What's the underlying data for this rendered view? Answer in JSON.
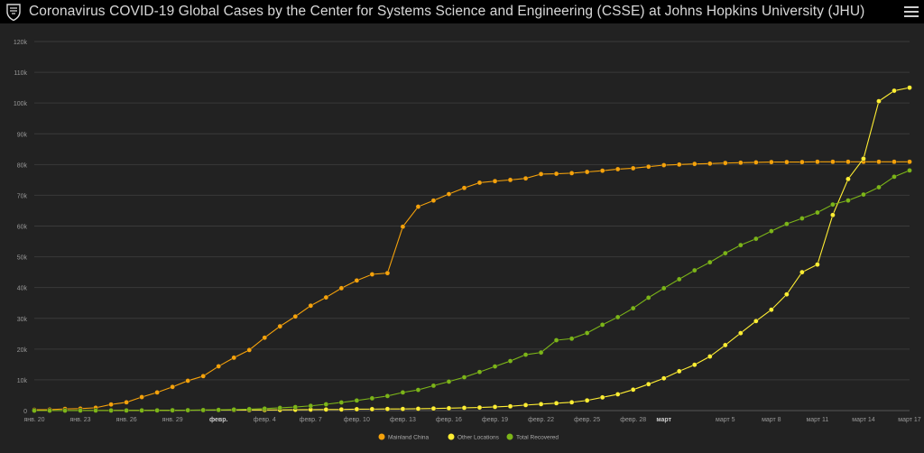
{
  "header": {
    "title": "Coronavirus COVID-19 Global Cases by the Center for Systems Science and Engineering (CSSE) at Johns Hopkins University (JHU)"
  },
  "colors": {
    "background": "#222222",
    "header_bg": "#000000",
    "mainland": "#f5a20b",
    "other": "#ffee33",
    "recovered": "#7cb518",
    "grid": "#3a3a3a",
    "tick_text": "#999999"
  },
  "chart_data": {
    "type": "line",
    "title": "",
    "xlabel": "",
    "ylabel": "",
    "ylim": [
      0,
      120000
    ],
    "yticks": [
      0,
      10000,
      20000,
      30000,
      40000,
      50000,
      60000,
      70000,
      80000,
      90000,
      100000,
      110000,
      120000
    ],
    "ytick_labels": [
      "0",
      "10k",
      "20k",
      "30k",
      "40k",
      "50k",
      "60k",
      "70k",
      "80k",
      "90k",
      "100k",
      "110k",
      "120k"
    ],
    "grid": "horizontal",
    "legend_position": "bottom",
    "x_ticks": [
      {
        "day": 0,
        "label": "янв. 20",
        "bold": false
      },
      {
        "day": 3,
        "label": "янв. 23",
        "bold": false
      },
      {
        "day": 6,
        "label": "янв. 26",
        "bold": false
      },
      {
        "day": 9,
        "label": "янв. 29",
        "bold": false
      },
      {
        "day": 12,
        "label": "февр.",
        "bold": true
      },
      {
        "day": 15,
        "label": "февр. 4",
        "bold": false
      },
      {
        "day": 18,
        "label": "февр. 7",
        "bold": false
      },
      {
        "day": 21,
        "label": "февр. 10",
        "bold": false
      },
      {
        "day": 24,
        "label": "февр. 13",
        "bold": false
      },
      {
        "day": 27,
        "label": "февр. 16",
        "bold": false
      },
      {
        "day": 30,
        "label": "февр. 19",
        "bold": false
      },
      {
        "day": 33,
        "label": "февр. 22",
        "bold": false
      },
      {
        "day": 36,
        "label": "февр. 25",
        "bold": false
      },
      {
        "day": 39,
        "label": "февр. 28",
        "bold": false
      },
      {
        "day": 41,
        "label": "март",
        "bold": true
      },
      {
        "day": 45,
        "label": "март 5",
        "bold": false
      },
      {
        "day": 48,
        "label": "март 8",
        "bold": false
      },
      {
        "day": 51,
        "label": "март 11",
        "bold": false
      },
      {
        "day": 54,
        "label": "март 14",
        "bold": false
      },
      {
        "day": 57,
        "label": "март 17",
        "bold": false
      }
    ],
    "x_range": [
      0,
      57
    ],
    "series": [
      {
        "name": "Mainland China",
        "color": "#f5a20b",
        "values": [
          278,
          326,
          547,
          639,
          916,
          2000,
          2700,
          4400,
          5900,
          7700,
          9700,
          11200,
          14400,
          17200,
          19700,
          23700,
          27400,
          30600,
          34100,
          36800,
          39800,
          42300,
          44300,
          44700,
          59800,
          66300,
          68300,
          70400,
          72400,
          74100,
          74600,
          75000,
          75500,
          76900,
          77000,
          77200,
          77600,
          78000,
          78500,
          78800,
          79300,
          79800,
          80000,
          80200,
          80300,
          80500,
          80600,
          80700,
          80800,
          80800,
          80800,
          80900,
          80900,
          80900,
          80900,
          80900,
          80900,
          80900
        ]
      },
      {
        "name": "Other Locations",
        "color": "#ffee33",
        "values": [
          4,
          6,
          8,
          14,
          25,
          40,
          57,
          64,
          87,
          105,
          118,
          153,
          173,
          183,
          188,
          212,
          227,
          265,
          317,
          343,
          361,
          457,
          476,
          523,
          538,
          595,
          685,
          780,
          896,
          999,
          1200,
          1400,
          1800,
          2100,
          2400,
          2700,
          3300,
          4300,
          5300,
          6800,
          8600,
          10500,
          12800,
          14900,
          17600,
          21300,
          25200,
          29100,
          32800,
          37800,
          45000,
          47500,
          63600,
          75300,
          81900,
          100600,
          104000,
          105000
        ]
      },
      {
        "name": "Total Recovered",
        "color": "#7cb518",
        "values": [
          0,
          0,
          0,
          28,
          30,
          36,
          39,
          49,
          60,
          103,
          124,
          171,
          243,
          328,
          475,
          632,
          892,
          1153,
          1540,
          2050,
          2649,
          3281,
          3996,
          4740,
          5911,
          6723,
          8096,
          9419,
          10844,
          12552,
          14352,
          16121,
          18177,
          18890,
          22886,
          23394,
          25227,
          27905,
          30384,
          33277,
          36711,
          39782,
          42716,
          45602,
          48228,
          51170,
          53796,
          55865,
          58358,
          60694,
          62494,
          64404,
          67003,
          68324,
          70251,
          72624,
          76034,
          78088
        ]
      }
    ]
  }
}
